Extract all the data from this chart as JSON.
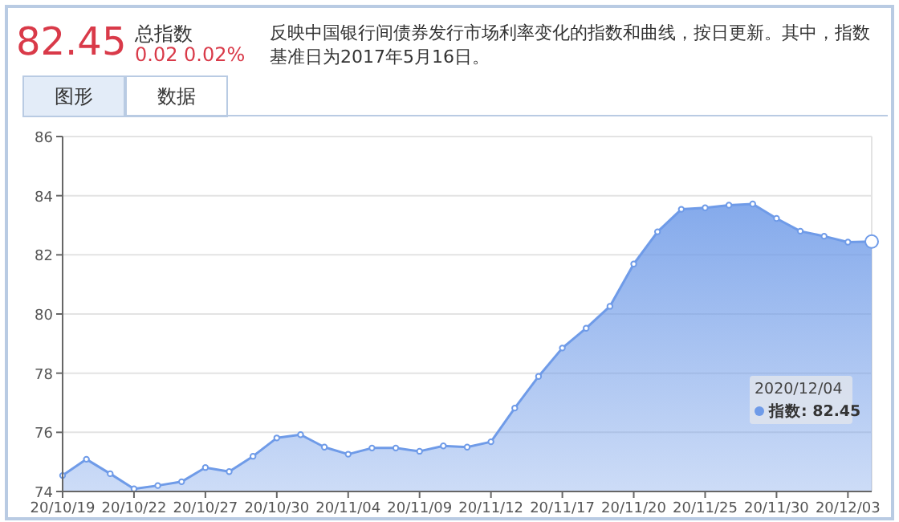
{
  "chart_data": {
    "type": "area",
    "title": "82.45",
    "subtitle": "总指数",
    "annotations": [
      "0.02 0.02%",
      "反映中国银行间债券发行市场利率变化的指数和曲线，按日更新。其中，指数基准日为2017年5月16日。",
      "图形",
      "数据",
      "2020/12/04",
      "指数: 82.45"
    ],
    "categories": [
      "20/10/19",
      null,
      null,
      "20/10/22",
      null,
      null,
      "20/10/27",
      null,
      null,
      "20/10/30",
      null,
      null,
      "20/11/04",
      null,
      null,
      "20/11/09",
      null,
      null,
      "20/11/12",
      null,
      null,
      "20/11/17",
      null,
      null,
      "20/11/20",
      null,
      null,
      "20/11/25",
      null,
      null,
      "20/11/30",
      null,
      null,
      "20/12/03",
      null
    ],
    "series": [
      {
        "color": "#6f9be8",
        "values": [
          74.54,
          75.09,
          74.6,
          74.09,
          74.2,
          74.33,
          74.81,
          74.67,
          75.19,
          75.81,
          75.92,
          75.5,
          75.26,
          75.47,
          75.47,
          75.36,
          75.54,
          75.5,
          75.68,
          76.82,
          77.89,
          78.85,
          79.52,
          80.26,
          81.69,
          82.78,
          83.54,
          83.59,
          83.68,
          83.72,
          83.23,
          82.8,
          82.63,
          82.43,
          82.45
        ]
      }
    ],
    "ylim": [
      74,
      86
    ],
    "yticks": [
      74,
      76,
      78,
      80,
      82,
      84,
      86
    ],
    "grid": "y",
    "marker": "circle"
  }
}
